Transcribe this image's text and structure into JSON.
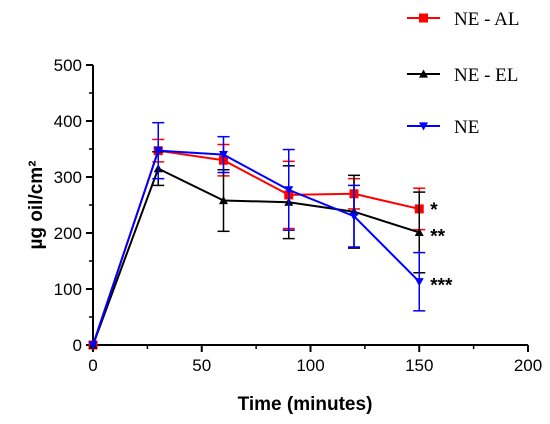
{
  "chart_data": {
    "type": "line",
    "title": "",
    "xlabel": "Time (minutes)",
    "ylabel": "µg oil/cm²",
    "xlim": [
      0,
      200
    ],
    "ylim": [
      0,
      500
    ],
    "x_ticks": [
      0,
      50,
      100,
      150,
      200
    ],
    "y_ticks": [
      0,
      100,
      200,
      300,
      400,
      500
    ],
    "grid": false,
    "legend_position": "top-right",
    "series": [
      {
        "name": "NE - AL",
        "color": "#ff0000",
        "marker": "square",
        "x": [
          0,
          30,
          60,
          90,
          120,
          150
        ],
        "y": [
          0,
          347,
          330,
          268,
          270,
          243
        ],
        "error": [
          0,
          20,
          28,
          60,
          27,
          37
        ],
        "annotation": "*"
      },
      {
        "name": "NE - EL",
        "color": "#000000",
        "marker": "triangle-up",
        "x": [
          0,
          30,
          60,
          90,
          120,
          150
        ],
        "y": [
          0,
          315,
          258,
          255,
          238,
          201
        ],
        "error": [
          0,
          30,
          55,
          65,
          65,
          72
        ],
        "annotation": "**"
      },
      {
        "name": "NE",
        "color": "#0000ff",
        "marker": "triangle-down",
        "x": [
          0,
          30,
          60,
          90,
          120,
          150
        ],
        "y": [
          0,
          347,
          340,
          277,
          230,
          113
        ],
        "error": [
          0,
          50,
          32,
          72,
          55,
          52
        ],
        "annotation": "***"
      }
    ]
  }
}
